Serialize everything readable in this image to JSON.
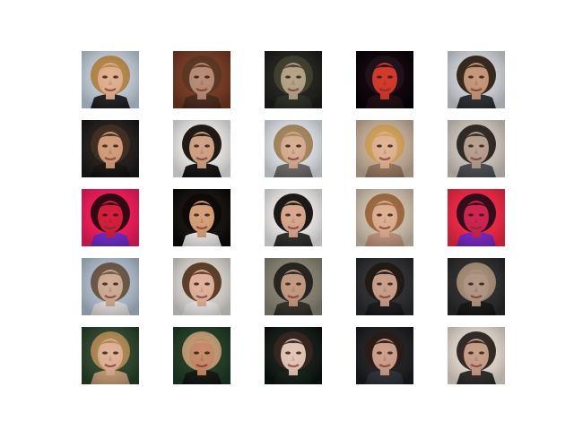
{
  "figure": {
    "background": "#ffffff",
    "rows": 5,
    "cols": 5
  },
  "samples": [
    {
      "row": 1,
      "col": 1,
      "subject": "face-portrait",
      "bg": "#c9d7e6",
      "hair": "#b88a4a",
      "skin": "#e2b190",
      "shirt": "#1d1d22"
    },
    {
      "row": 1,
      "col": 2,
      "subject": "face-portrait",
      "bg": "#7a3b24",
      "hair": "#5a3520",
      "skin": "#b98e78",
      "shirt": "#4a2a1c"
    },
    {
      "row": 1,
      "col": 3,
      "subject": "face-portrait",
      "bg": "#1c1e1a",
      "hair": "#3c3b2b",
      "skin": "#b7a488",
      "shirt": "#2a2f26"
    },
    {
      "row": 1,
      "col": 4,
      "subject": "face-portrait",
      "bg": "#05030a",
      "hair": "#16101a",
      "skin": "#d43a2c",
      "shirt": "#1a0e16"
    },
    {
      "row": 1,
      "col": 5,
      "subject": "face-portrait",
      "bg": "#d9dfe6",
      "hair": "#2f241a",
      "skin": "#c8987a",
      "shirt": "#2a2e33"
    },
    {
      "row": 2,
      "col": 1,
      "subject": "face-portrait",
      "bg": "#1b1b1b",
      "hair": "#3b2a1e",
      "skin": "#d39e7c",
      "shirt": "#111111"
    },
    {
      "row": 2,
      "col": 2,
      "subject": "face-portrait",
      "bg": "#f6f6f6",
      "hair": "#15120f",
      "skin": "#d2a386",
      "shirt": "#111111"
    },
    {
      "row": 2,
      "col": 3,
      "subject": "face-portrait",
      "bg": "#e8eef5",
      "hair": "#a7895f",
      "skin": "#d8b095",
      "shirt": "#6d6b6c"
    },
    {
      "row": 2,
      "col": 4,
      "subject": "face-portrait",
      "bg": "#ceb8a2",
      "hair": "#d5a55a",
      "skin": "#e3b595",
      "shirt": "#9b7b63"
    },
    {
      "row": 2,
      "col": 5,
      "subject": "face-portrait",
      "bg": "#d9d2c8",
      "hair": "#2a2521",
      "skin": "#b9a192",
      "shirt": "#4c4f56"
    },
    {
      "row": 3,
      "col": 1,
      "subject": "face-portrait",
      "bg": "#ff1f62",
      "hair": "#2a0811",
      "skin": "#d51f3c",
      "shirt": "#6e2fd8"
    },
    {
      "row": 3,
      "col": 2,
      "subject": "face-portrait",
      "bg": "#0b0b0b",
      "hair": "#000000",
      "skin": "#d6a17a",
      "shirt": "#f2f2f2"
    },
    {
      "row": 3,
      "col": 3,
      "subject": "face-portrait",
      "bg": "#f7f7f7",
      "hair": "#11100e",
      "skin": "#d9a890",
      "shirt": "#2b2b2b"
    },
    {
      "row": 3,
      "col": 4,
      "subject": "face-portrait",
      "bg": "#d9cbb8",
      "hair": "#9f6a3f",
      "skin": "#e0b092",
      "shirt": "#c59a82"
    },
    {
      "row": 3,
      "col": 5,
      "subject": "face-portrait",
      "bg": "#ff2d4b",
      "hair": "#2b0c18",
      "skin": "#d02452",
      "shirt": "#7b2bd0"
    },
    {
      "row": 4,
      "col": 1,
      "subject": "face-portrait",
      "bg": "#b8c7da",
      "hair": "#6a5646",
      "skin": "#d0ad95",
      "shirt": "#e8e8e8"
    },
    {
      "row": 4,
      "col": 2,
      "subject": "face-portrait",
      "bg": "#e3e0dc",
      "hair": "#5a3a23",
      "skin": "#e1b39d",
      "shirt": "#f0f0f0"
    },
    {
      "row": 4,
      "col": 3,
      "subject": "face-portrait",
      "bg": "#8c8a79",
      "hair": "#1f1e1d",
      "skin": "#c49a82",
      "shirt": "#2f3029"
    },
    {
      "row": 4,
      "col": 4,
      "subject": "face-portrait",
      "bg": "#2a2c30",
      "hair": "#17130f",
      "skin": "#caa08b",
      "shirt": "#15171a"
    },
    {
      "row": 4,
      "col": 5,
      "subject": "face-portrait",
      "bg": "#2a2b2c",
      "hair": "#a68f79",
      "skin": "#b39886",
      "shirt": "#141414"
    },
    {
      "row": 5,
      "col": 1,
      "subject": "face-portrait",
      "bg": "#28452c",
      "hair": "#b08a52",
      "skin": "#e2b398",
      "shirt": "#caa07a"
    },
    {
      "row": 5,
      "col": 2,
      "subject": "face-portrait",
      "bg": "#1d3d25",
      "hair": "#c3a07b",
      "skin": "#c78c6a",
      "shirt": "#101410"
    },
    {
      "row": 5,
      "col": 3,
      "subject": "face-portrait",
      "bg": "#0b1510",
      "hair": "#2c1e16",
      "skin": "#e5c6b6",
      "shirt": "#0f1a14"
    },
    {
      "row": 5,
      "col": 4,
      "subject": "face-portrait",
      "bg": "#1a1d22",
      "hair": "#201510",
      "skin": "#cfa08c",
      "shirt": "#2b3037"
    },
    {
      "row": 5,
      "col": 5,
      "subject": "face-portrait",
      "bg": "#efe7dd",
      "hair": "#2b2521",
      "skin": "#c9a08a",
      "shirt": "#2b2b2b"
    }
  ]
}
